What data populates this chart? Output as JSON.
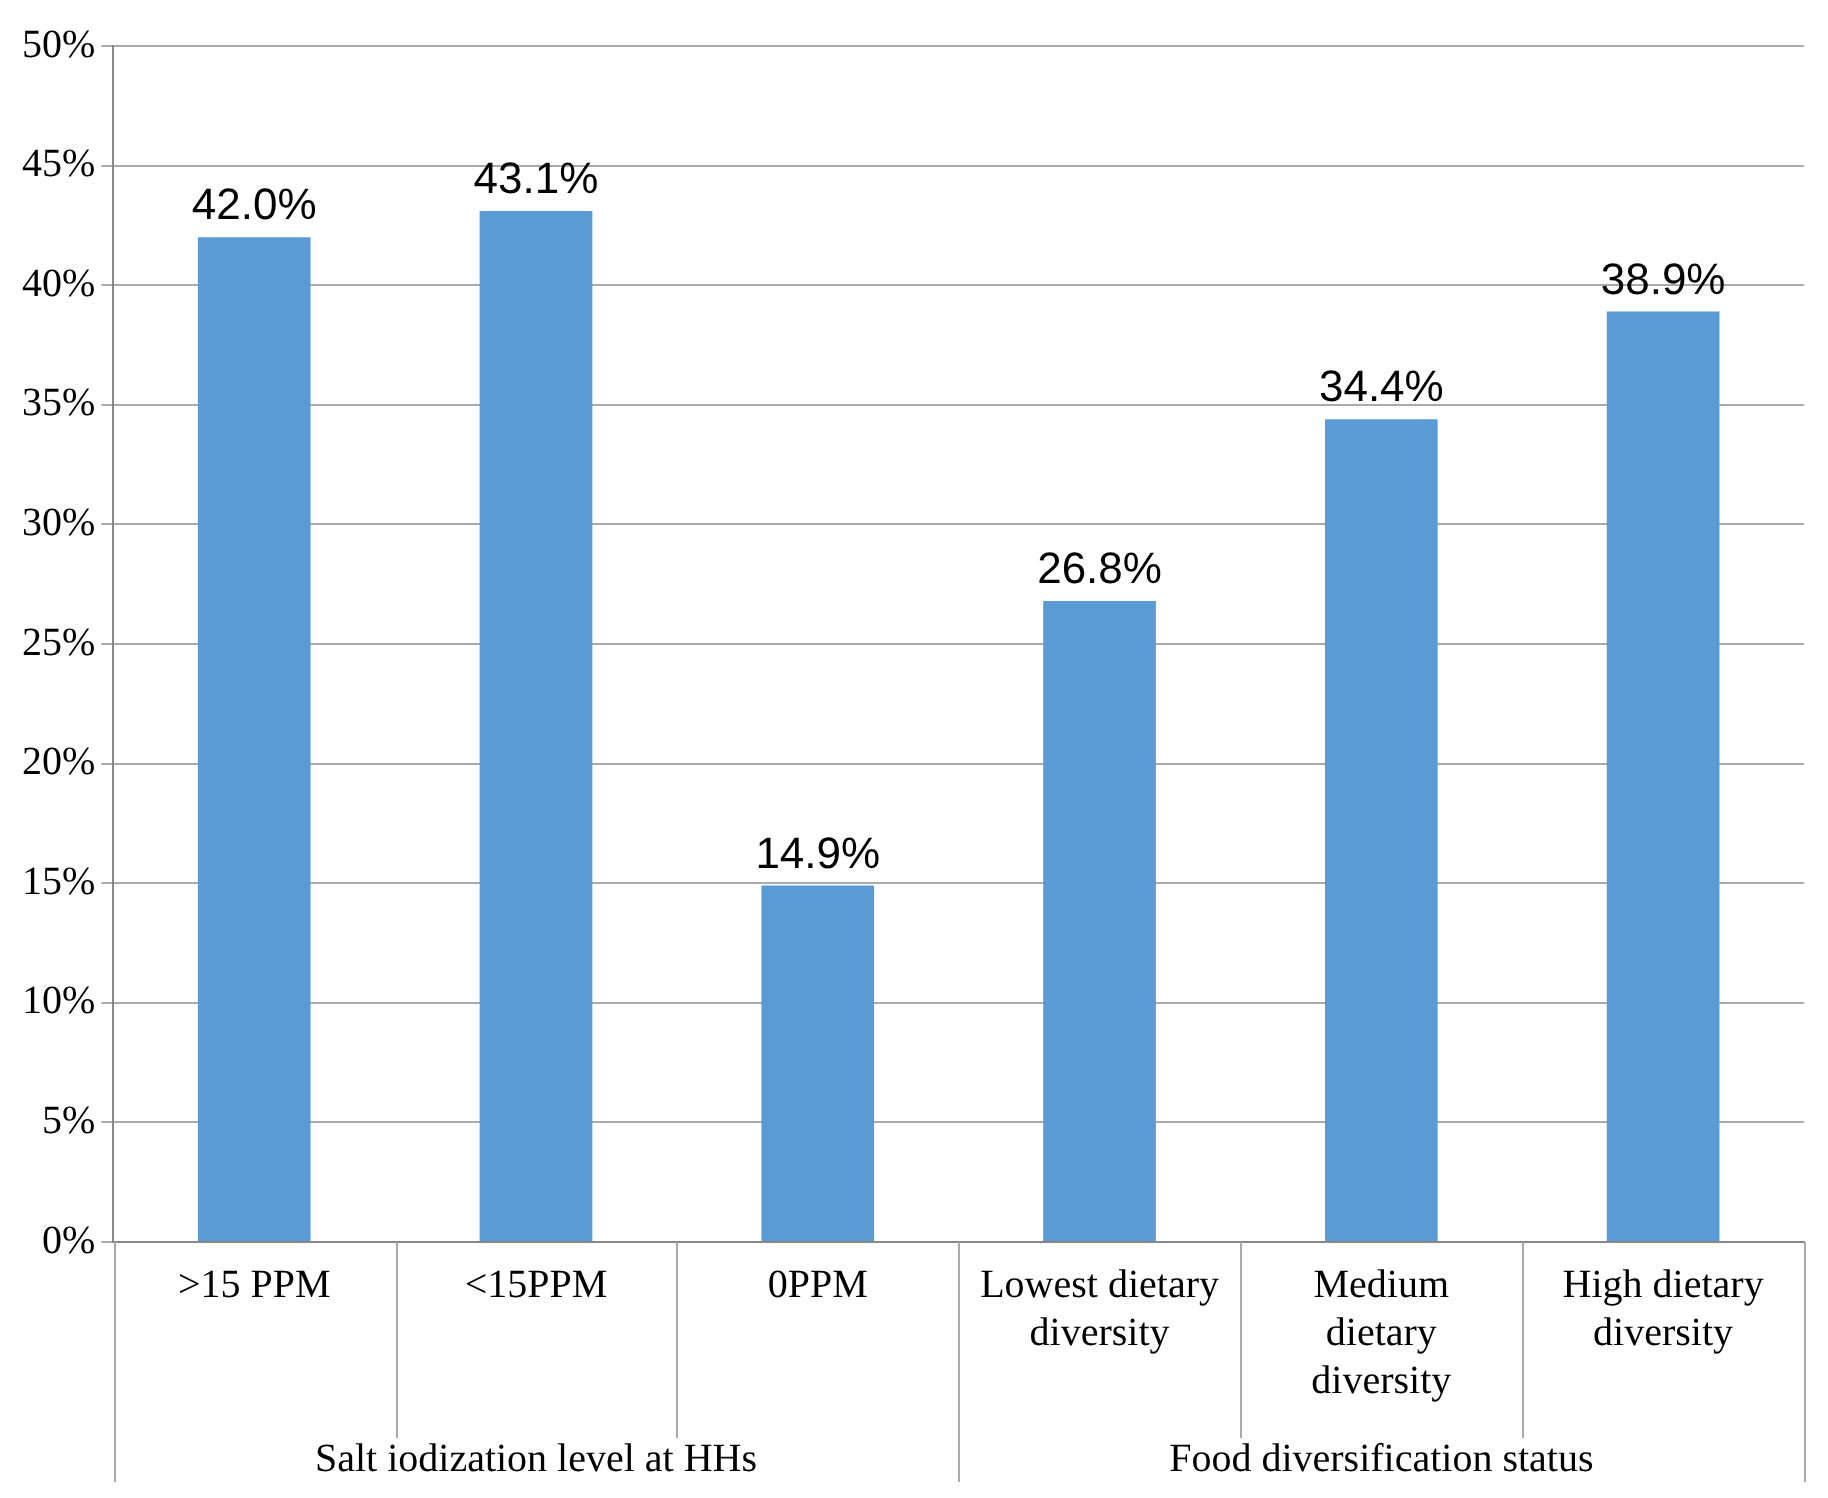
{
  "chart_data": {
    "type": "bar",
    "categories": [
      ">15 PPM",
      "<15PPM",
      "0PPM",
      "Lowest dietary diversity",
      "Medium dietary diversity",
      "High dietary diversity"
    ],
    "values": [
      42.0,
      43.1,
      14.9,
      26.8,
      34.4,
      38.9
    ],
    "value_labels": [
      "42.0%",
      "43.1%",
      "14.9%",
      "26.8%",
      "34.4%",
      "38.9%"
    ],
    "color": "#5b9bd5",
    "ylim": [
      0,
      50
    ],
    "yticks": [
      {
        "value": 0,
        "label": "0%"
      },
      {
        "value": 5,
        "label": "5%"
      },
      {
        "value": 10,
        "label": "10%"
      },
      {
        "value": 15,
        "label": "15%"
      },
      {
        "value": 20,
        "label": "20%"
      },
      {
        "value": 25,
        "label": "25%"
      },
      {
        "value": 30,
        "label": "30%"
      },
      {
        "value": 35,
        "label": "35%"
      },
      {
        "value": 40,
        "label": "40%"
      },
      {
        "value": 45,
        "label": "45%"
      },
      {
        "value": 50,
        "label": "50%"
      }
    ],
    "grid": "y",
    "legend": false,
    "annotations": [
      "Salt iodization level at HHs",
      "Food diversification status"
    ]
  }
}
